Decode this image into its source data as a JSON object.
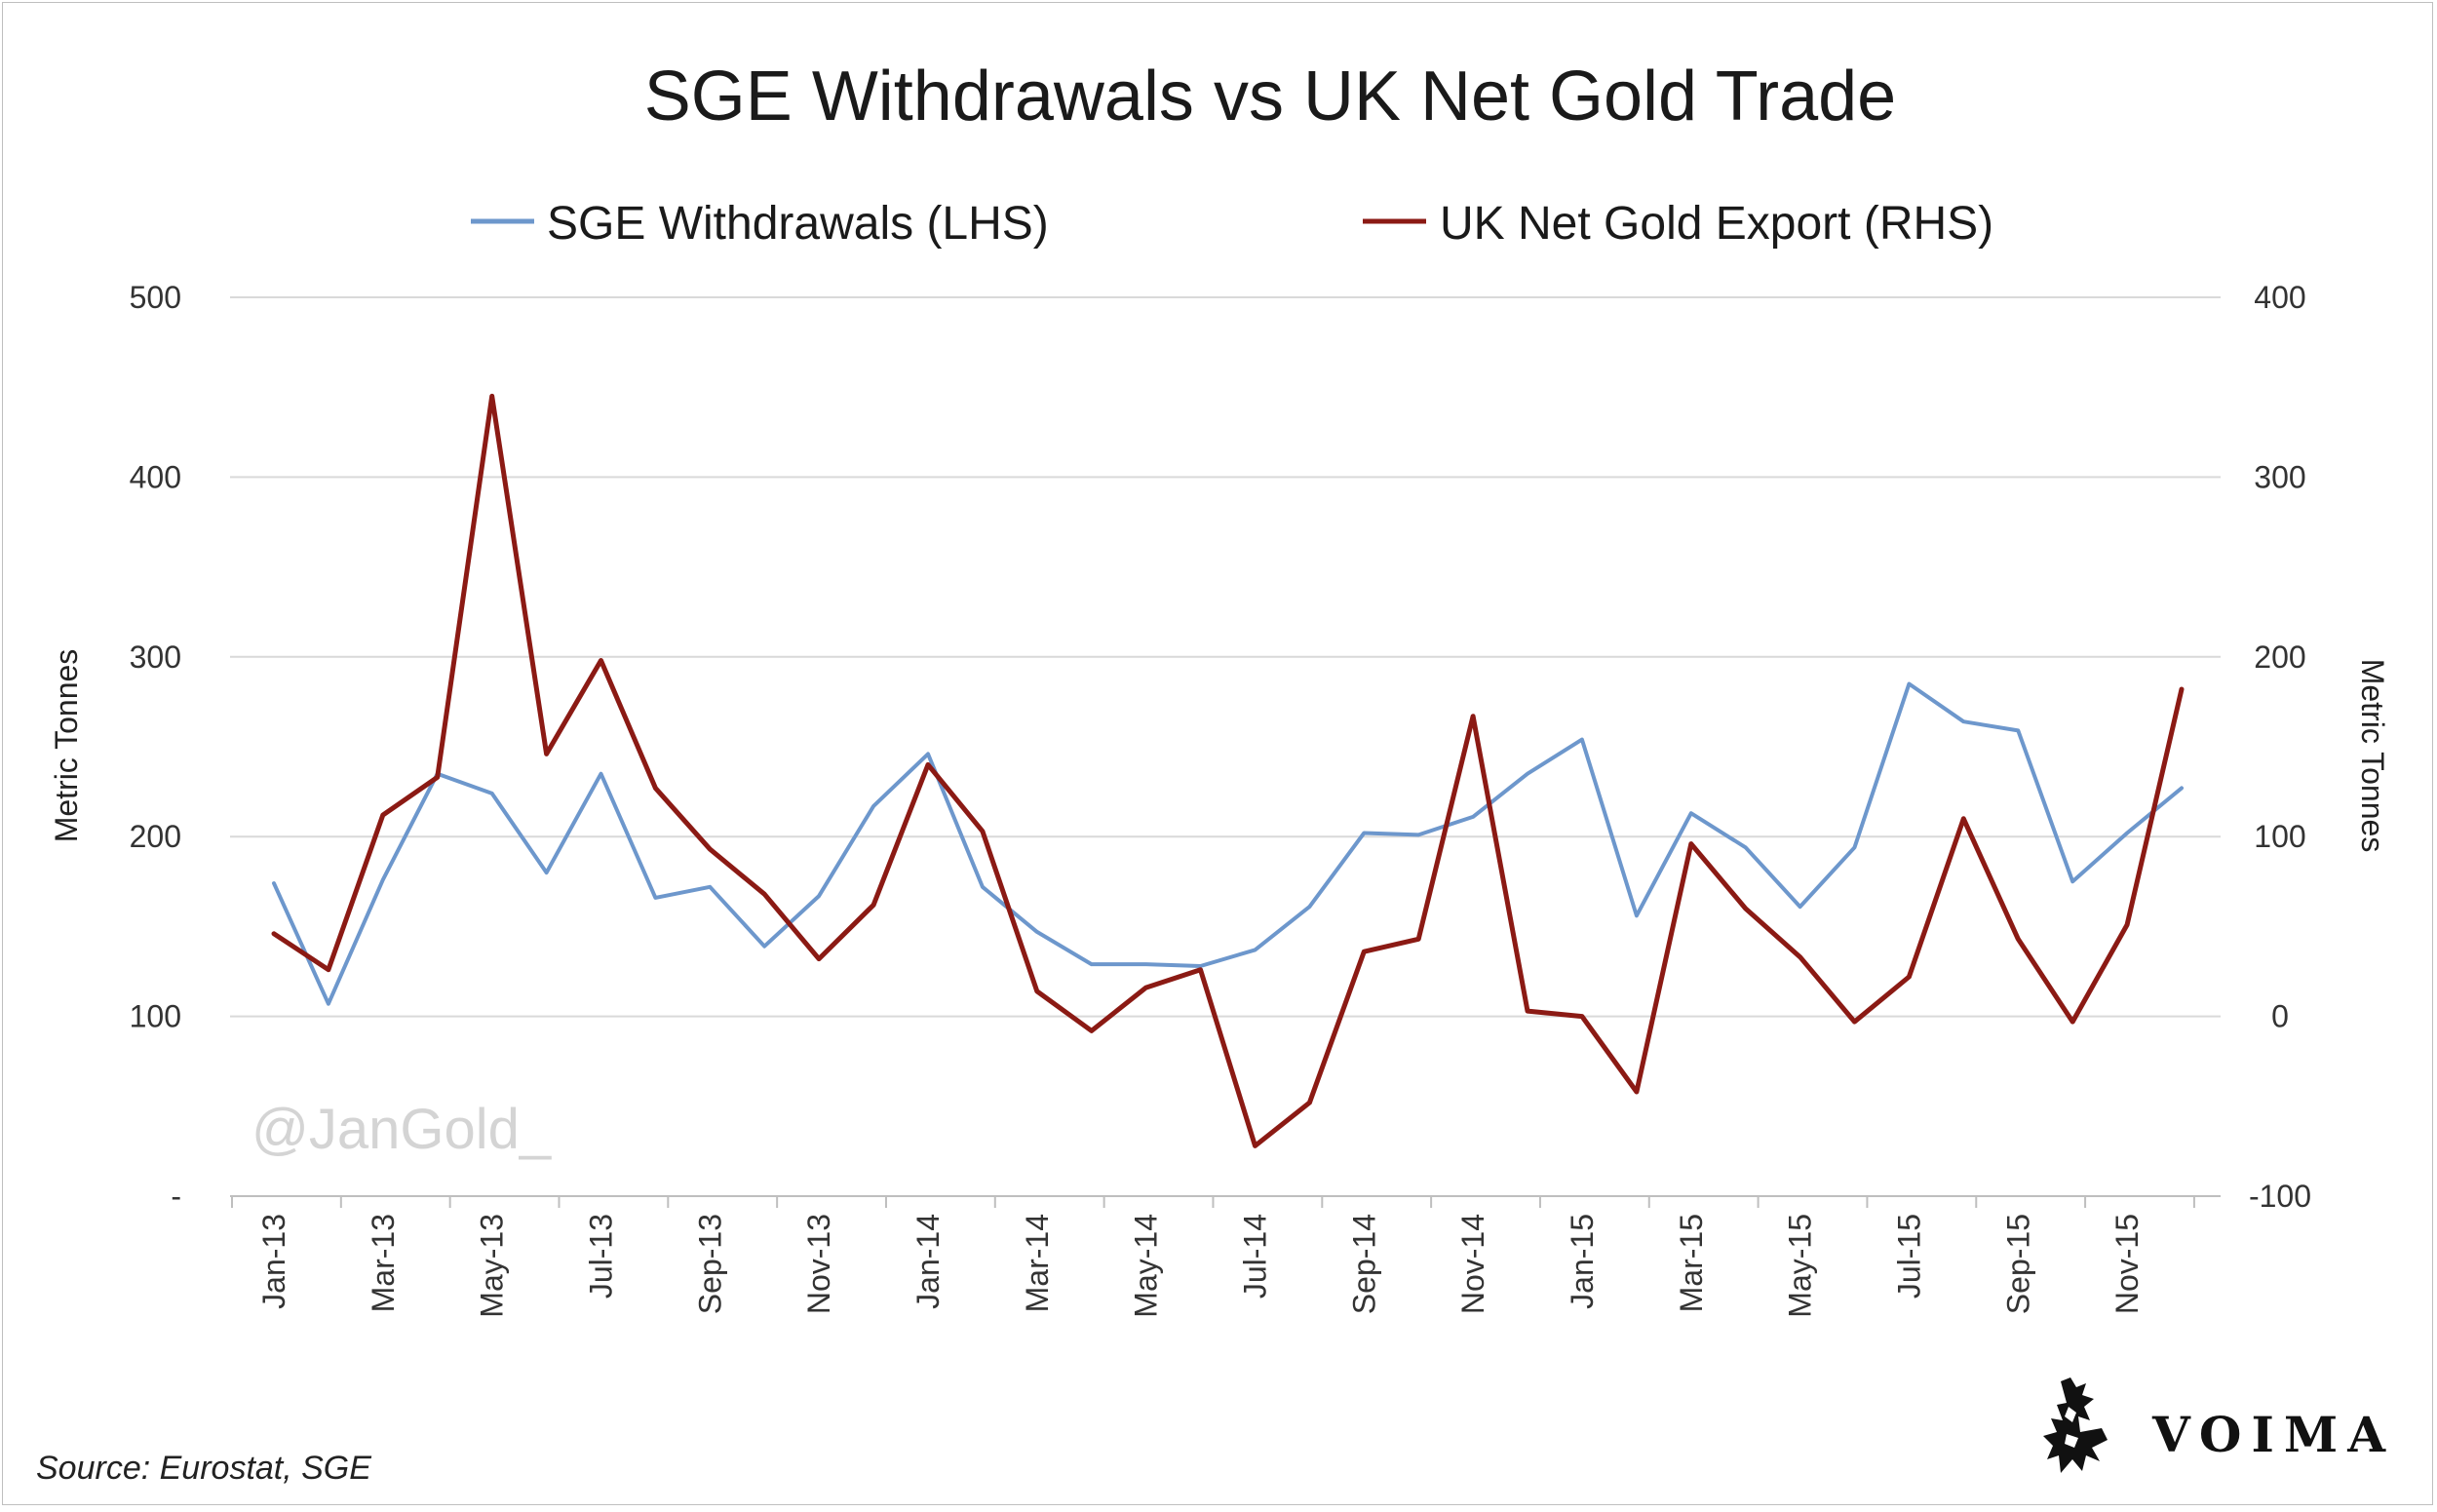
{
  "colors": {
    "sge": "#6d97cc",
    "uk": "#8b1a14",
    "grid": "#d9d9d9",
    "axis": "#bfbfbf"
  },
  "chart_data": {
    "type": "line",
    "title": "SGE Withdrawals vs UK Net Gold Trade",
    "legend_placement": "top",
    "grid": true,
    "x_tick_labels": [
      "Jan-13",
      "Mar-13",
      "May-13",
      "Jul-13",
      "Sep-13",
      "Nov-13",
      "Jan-14",
      "Mar-14",
      "May-14",
      "Jul-14",
      "Sep-14",
      "Nov-14",
      "Jan-15",
      "Mar-15",
      "May-15",
      "Jul-15",
      "Sep-15",
      "Nov-15"
    ],
    "x": [
      "Jan-13",
      "Feb-13",
      "Mar-13",
      "Apr-13",
      "May-13",
      "Jun-13",
      "Jul-13",
      "Aug-13",
      "Sep-13",
      "Oct-13",
      "Nov-13",
      "Dec-13",
      "Jan-14",
      "Feb-14",
      "Mar-14",
      "Apr-14",
      "May-14",
      "Jun-14",
      "Jul-14",
      "Aug-14",
      "Sep-14",
      "Oct-14",
      "Nov-14",
      "Dec-14",
      "Jan-15",
      "Feb-15",
      "Mar-15",
      "Apr-15",
      "May-15",
      "Jun-15",
      "Jul-15",
      "Aug-15",
      "Sep-15",
      "Oct-15",
      "Nov-15",
      "Dec-15"
    ],
    "left_axis": {
      "label": "Metric Tonnes",
      "ylim": [
        0,
        500
      ],
      "ticks": [
        0,
        100,
        200,
        300,
        400,
        500
      ],
      "tick_labels": [
        "-",
        "100",
        "200",
        "300",
        "400",
        "500"
      ]
    },
    "right_axis": {
      "label": "Metric Tonnes",
      "ylim": [
        -100,
        400
      ],
      "ticks": [
        -100,
        0,
        100,
        200,
        300,
        400
      ],
      "tick_labels": [
        "-100",
        "0",
        "100",
        "200",
        "300",
        "400"
      ]
    },
    "series": [
      {
        "name": "SGE Withdrawals (LHS)",
        "axis": "left",
        "values": [
          174,
          107,
          176,
          235,
          224,
          180,
          235,
          166,
          172,
          139,
          167,
          217,
          246,
          172,
          147,
          129,
          129,
          128,
          137,
          161,
          202,
          201,
          211,
          235,
          254,
          156,
          213,
          194,
          161,
          194,
          285,
          264,
          259,
          175,
          202,
          227
        ]
      },
      {
        "name": "UK Net Gold Export (RHS)",
        "axis": "right",
        "values": [
          46,
          26,
          112,
          133,
          345,
          146,
          198,
          127,
          93,
          68,
          32,
          62,
          140,
          103,
          14,
          -8,
          16,
          26,
          -72,
          -48,
          36,
          43,
          167,
          3,
          0,
          -42,
          96,
          60,
          33,
          -3,
          22,
          110,
          43,
          -3,
          51,
          182
        ]
      }
    ]
  },
  "watermark": "@JanGold_",
  "source": "Source: Eurostat, SGE",
  "brand": {
    "name": "VOIMA",
    "logo_icon": "griffin-logo-icon"
  }
}
